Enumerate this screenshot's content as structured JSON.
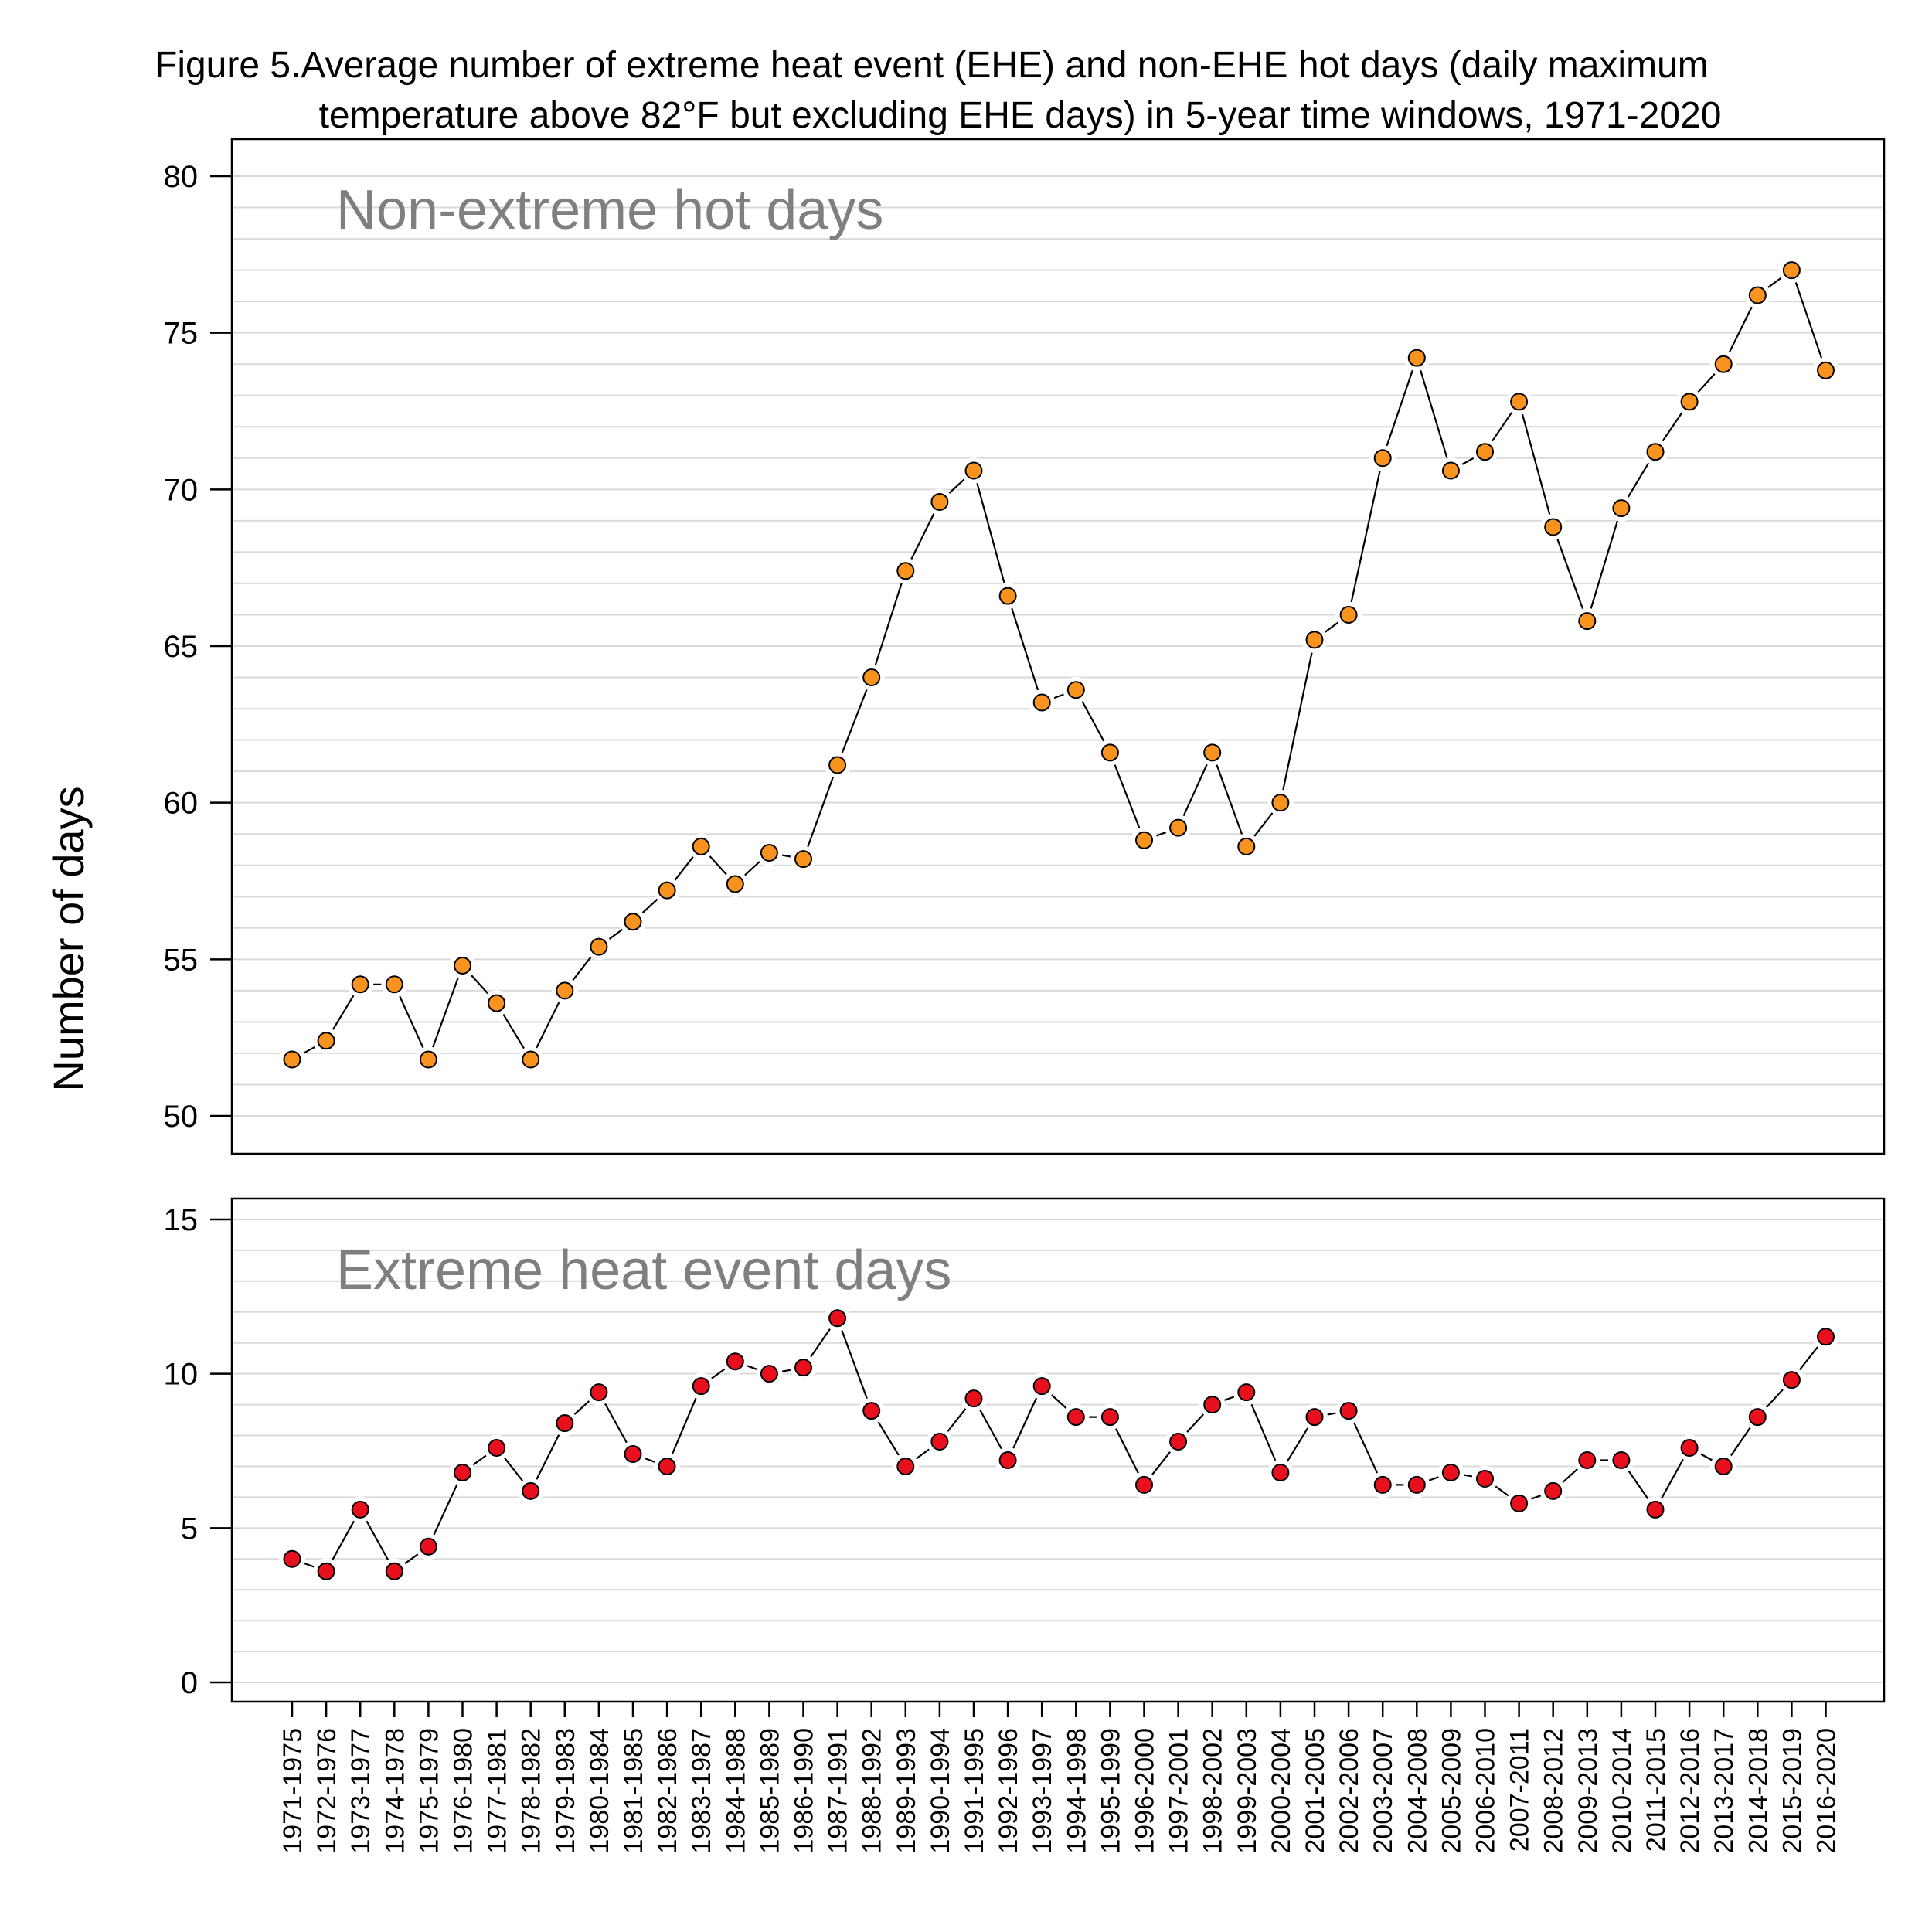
{
  "title_lines": [
    "Figure 5.Average number of extreme heat event (EHE) and non-EHE hot days (daily maximum",
    "temperature above 82°F but excluding EHE days) in 5-year time windows, 1971-2020"
  ],
  "ylabel": "Number of days",
  "colors": {
    "nonehe_marker": "#f7931e",
    "ehe_marker": "#e8101c",
    "marker_outline": "#000000",
    "panel_label": "#7f7f7f",
    "grid": "#d9d9d9"
  },
  "chart_data": [
    {
      "type": "line",
      "label": "Non-extreme hot days",
      "ylim": [
        50,
        80
      ],
      "yticks": [
        50,
        55,
        60,
        65,
        70,
        75,
        80
      ],
      "grid": true,
      "markers": "circle",
      "x": [
        "1971-1975",
        "1972-1976",
        "1973-1977",
        "1974-1978",
        "1975-1979",
        "1976-1980",
        "1977-1981",
        "1978-1982",
        "1979-1983",
        "1980-1984",
        "1981-1985",
        "1982-1986",
        "1983-1987",
        "1984-1988",
        "1985-1989",
        "1986-1990",
        "1987-1991",
        "1988-1992",
        "1989-1993",
        "1990-1994",
        "1991-1995",
        "1992-1996",
        "1993-1997",
        "1994-1998",
        "1995-1999",
        "1996-2000",
        "1997-2001",
        "1998-2002",
        "1999-2003",
        "2000-2004",
        "2001-2005",
        "2002-2006",
        "2003-2007",
        "2004-2008",
        "2005-2009",
        "2006-2010",
        "2007-2011",
        "2008-2012",
        "2009-2013",
        "2010-2014",
        "2011-2015",
        "2012-2016",
        "2013-2017",
        "2014-2018",
        "2015-2019",
        "2016-2020"
      ],
      "values": [
        51.8,
        52.4,
        54.2,
        54.2,
        51.8,
        54.8,
        53.6,
        51.8,
        54.0,
        55.4,
        56.2,
        57.2,
        58.6,
        57.4,
        58.4,
        58.2,
        61.2,
        64.0,
        67.4,
        69.6,
        70.6,
        66.6,
        63.2,
        63.6,
        61.6,
        58.8,
        59.2,
        61.6,
        58.6,
        60.0,
        65.2,
        66.0,
        71.0,
        74.2,
        70.6,
        71.2,
        72.8,
        68.8,
        65.8,
        69.4,
        71.2,
        72.8,
        74.0,
        76.2,
        77.0,
        73.8
      ]
    },
    {
      "type": "line",
      "label": "Extreme heat event days",
      "ylim": [
        0,
        15
      ],
      "yticks": [
        0,
        5,
        10,
        15
      ],
      "grid": true,
      "markers": "circle",
      "x": [
        "1971-1975",
        "1972-1976",
        "1973-1977",
        "1974-1978",
        "1975-1979",
        "1976-1980",
        "1977-1981",
        "1978-1982",
        "1979-1983",
        "1980-1984",
        "1981-1985",
        "1982-1986",
        "1983-1987",
        "1984-1988",
        "1985-1989",
        "1986-1990",
        "1987-1991",
        "1988-1992",
        "1989-1993",
        "1990-1994",
        "1991-1995",
        "1992-1996",
        "1993-1997",
        "1994-1998",
        "1995-1999",
        "1996-2000",
        "1997-2001",
        "1998-2002",
        "1999-2003",
        "2000-2004",
        "2001-2005",
        "2002-2006",
        "2003-2007",
        "2004-2008",
        "2005-2009",
        "2006-2010",
        "2007-2011",
        "2008-2012",
        "2009-2013",
        "2010-2014",
        "2011-2015",
        "2012-2016",
        "2013-2017",
        "2014-2018",
        "2015-2019",
        "2016-2020"
      ],
      "values": [
        4.0,
        3.6,
        5.6,
        3.6,
        4.4,
        6.8,
        7.6,
        6.2,
        8.4,
        9.4,
        7.4,
        7.0,
        9.6,
        10.4,
        10.0,
        10.2,
        11.8,
        8.8,
        7.0,
        7.8,
        9.2,
        7.2,
        9.6,
        8.6,
        8.6,
        6.4,
        7.8,
        9.0,
        9.4,
        6.8,
        8.6,
        8.8,
        6.4,
        6.4,
        6.8,
        6.6,
        5.8,
        6.2,
        7.2,
        7.2,
        5.6,
        7.6,
        7.0,
        8.6,
        9.8,
        11.2
      ]
    }
  ]
}
